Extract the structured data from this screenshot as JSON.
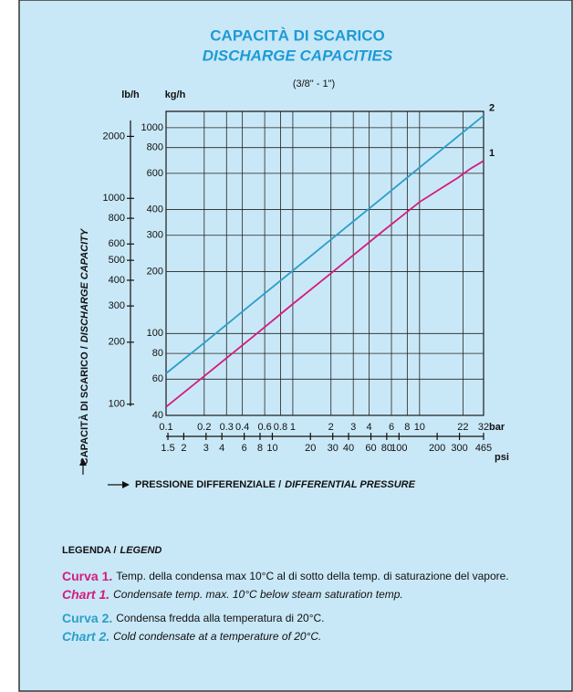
{
  "chart_data": {
    "type": "line",
    "title": "CAPACITÀ DI SCARICO",
    "subtitle": "DISCHARGE CAPACITIES",
    "size_note": "(3/8\" - 1\")",
    "y_label": [
      "CAPACITÀ DI SCARICO /",
      "DISCHARGE CAPACITY"
    ],
    "x_label": [
      "PRESSIONE DIFFERENZIALE /",
      "DIFFERENTIAL PRESSURE"
    ],
    "x_unit": "bar",
    "x2_unit": "psi",
    "y_unit": "kg/h",
    "y2_unit": "lb/h",
    "log_x": true,
    "log_y": true,
    "grid": true,
    "x": [
      0.1,
      0.2,
      0.5,
      1,
      2,
      5,
      10,
      15,
      20,
      25,
      32
    ],
    "series": [
      {
        "name": "2",
        "color": "#2a9fc9",
        "values": [
          64,
          90,
          143,
          202,
          286,
          452,
          640,
          784,
          905,
          1012,
          1145
        ]
      },
      {
        "name": "1",
        "color": "#d61a7f",
        "values": [
          44,
          62,
          98,
          139,
          196,
          310,
          435,
          510,
          570,
          630,
          690
        ]
      }
    ],
    "xlim": [
      0.1,
      32
    ],
    "xticks": [
      0.1,
      0.2,
      0.3,
      0.4,
      0.6,
      0.8,
      1,
      2,
      3,
      4,
      6,
      8,
      10,
      22,
      32
    ],
    "x2lim": [
      1.45,
      465
    ],
    "x2ticks": [
      1.5,
      2,
      3,
      4,
      6,
      8,
      10,
      20,
      30,
      40,
      60,
      80,
      100,
      200,
      300,
      465
    ],
    "ylim": [
      40,
      1200
    ],
    "yticks": [
      40,
      60,
      80,
      100,
      200,
      300,
      400,
      600,
      800,
      1000
    ],
    "y2lim": [
      88.2,
      2646
    ],
    "y2ticks": [
      100,
      200,
      300,
      400,
      500,
      600,
      800,
      1000,
      2000
    ]
  },
  "legend": {
    "heading": [
      "LEGENDA /",
      "LEGEND"
    ],
    "entries": [
      {
        "label": "Curva 1.",
        "text": "Temp. della condensa max 10°C al di sotto della temp. di saturazione del vapore.",
        "color": "#d61a7f",
        "italic": false
      },
      {
        "label": "Chart 1.",
        "text": "Condensate temp. max. 10°C below steam saturation temp.",
        "color": "#d61a7f",
        "italic": true
      },
      {
        "label": "Curva 2.",
        "text": "Condensa fredda alla temperatura di 20°C.",
        "color": "#2a9fc9",
        "italic": false
      },
      {
        "label": "Chart 2.",
        "text": "Cold condensate at a temperature of 20°C.",
        "color": "#2a9fc9",
        "italic": true
      }
    ]
  }
}
